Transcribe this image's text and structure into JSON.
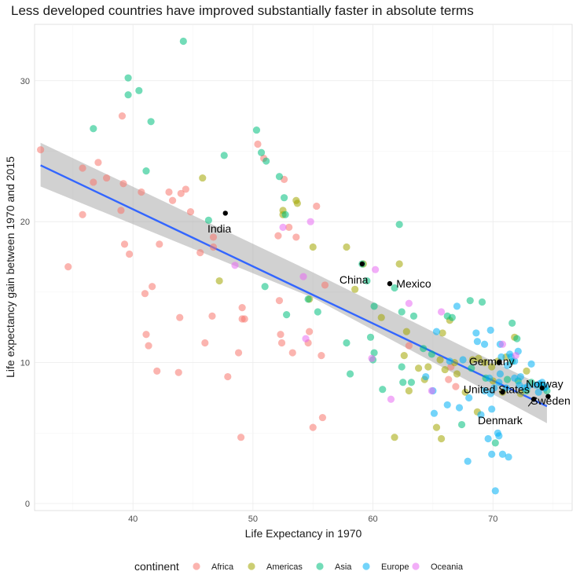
{
  "chart_data": {
    "type": "scatter",
    "title": "Less developed countries have improved substantially faster in absolute terms",
    "xlabel": "Life Expectancy in 1970",
    "ylabel": "Life expectancy gain between 1970 and 2015",
    "xlim": [
      31.8,
      76.6
    ],
    "ylim": [
      -0.5,
      34.0
    ],
    "x_ticks": [
      40,
      50,
      60,
      70
    ],
    "x_tick_labels": [
      "40",
      "50",
      "60",
      "70"
    ],
    "y_ticks": [
      0,
      10,
      20,
      30
    ],
    "y_tick_labels": [
      "0",
      "10",
      "20",
      "30"
    ],
    "grid": true,
    "legend": {
      "title": "continent",
      "placement": "bottom",
      "entries": [
        "Africa",
        "Americas",
        "Asia",
        "Europe",
        "Oceania"
      ]
    },
    "colors": {
      "Africa": "#f8766d",
      "Americas": "#a3a500",
      "Asia": "#00bf7d",
      "Europe": "#00b0f6",
      "Oceania": "#e76bf3",
      "trend": "#3366ff",
      "band": "#999999",
      "highlight": "#000000"
    },
    "trend_line": {
      "x": [
        32.3,
        74.5
      ],
      "y": [
        24.0,
        6.9
      ]
    },
    "confidence_band": {
      "x": [
        32.3,
        55.0,
        74.5
      ],
      "upper": [
        25.6,
        16.4,
        8.2
      ],
      "lower": [
        22.5,
        14.6,
        5.7
      ]
    },
    "series": [
      {
        "name": "Africa",
        "points": [
          [
            32.3,
            25.1
          ],
          [
            34.6,
            16.8
          ],
          [
            35.8,
            23.8
          ],
          [
            35.8,
            20.5
          ],
          [
            36.7,
            22.8
          ],
          [
            37.1,
            24.2
          ],
          [
            37.8,
            23.1
          ],
          [
            39.0,
            20.8
          ],
          [
            39.1,
            27.5
          ],
          [
            39.2,
            22.7
          ],
          [
            39.3,
            18.4
          ],
          [
            39.7,
            17.7
          ],
          [
            40.7,
            22.1
          ],
          [
            41.0,
            14.9
          ],
          [
            41.1,
            12.0
          ],
          [
            41.3,
            11.2
          ],
          [
            41.6,
            15.4
          ],
          [
            42.0,
            9.4
          ],
          [
            42.2,
            18.4
          ],
          [
            43.0,
            22.1
          ],
          [
            43.3,
            21.5
          ],
          [
            43.8,
            9.3
          ],
          [
            43.9,
            13.2
          ],
          [
            44.0,
            22.0
          ],
          [
            44.4,
            22.3
          ],
          [
            44.8,
            20.7
          ],
          [
            45.6,
            17.8
          ],
          [
            46.0,
            11.4
          ],
          [
            46.6,
            13.3
          ],
          [
            46.7,
            18.9
          ],
          [
            46.7,
            18.2
          ],
          [
            47.9,
            9.0
          ],
          [
            48.8,
            10.7
          ],
          [
            49.0,
            4.7
          ],
          [
            49.1,
            13.9
          ],
          [
            49.1,
            13.1
          ],
          [
            49.3,
            13.1
          ],
          [
            50.4,
            25.5
          ],
          [
            50.9,
            24.5
          ],
          [
            52.1,
            19.0
          ],
          [
            52.2,
            14.4
          ],
          [
            52.3,
            12.0
          ],
          [
            52.4,
            11.4
          ],
          [
            52.6,
            23.0
          ],
          [
            53.0,
            19.6
          ],
          [
            53.3,
            10.7
          ],
          [
            53.6,
            18.9
          ],
          [
            54.6,
            11.4
          ],
          [
            54.7,
            12.2
          ],
          [
            55.0,
            5.4
          ],
          [
            55.3,
            21.1
          ],
          [
            55.7,
            10.5
          ],
          [
            55.8,
            6.1
          ],
          [
            56.0,
            15.5
          ],
          [
            63.0,
            11.2
          ],
          [
            66.3,
            8.8
          ],
          [
            66.5,
            9.7
          ],
          [
            66.9,
            8.3
          ]
        ]
      },
      {
        "name": "Americas",
        "points": [
          [
            45.8,
            23.1
          ],
          [
            47.2,
            15.8
          ],
          [
            52.5,
            20.5
          ],
          [
            52.5,
            20.8
          ],
          [
            53.6,
            21.5
          ],
          [
            53.7,
            21.3
          ],
          [
            54.7,
            14.5
          ],
          [
            55.0,
            18.2
          ],
          [
            57.8,
            18.2
          ],
          [
            58.5,
            15.2
          ],
          [
            59.2,
            17.0
          ],
          [
            60.7,
            13.2
          ],
          [
            61.8,
            4.7
          ],
          [
            62.2,
            17.0
          ],
          [
            62.6,
            10.5
          ],
          [
            62.8,
            12.2
          ],
          [
            63.0,
            8.0
          ],
          [
            63.8,
            9.6
          ],
          [
            64.3,
            8.8
          ],
          [
            64.6,
            9.7
          ],
          [
            65.3,
            5.4
          ],
          [
            65.6,
            10.2
          ],
          [
            65.7,
            4.6
          ],
          [
            65.8,
            12.1
          ],
          [
            66.0,
            9.5
          ],
          [
            66.4,
            13.0
          ],
          [
            66.8,
            10.0
          ],
          [
            67.0,
            9.2
          ],
          [
            67.7,
            7.9
          ],
          [
            68.3,
            10.2
          ],
          [
            68.7,
            6.5
          ],
          [
            68.8,
            10.3
          ],
          [
            69.3,
            10.0
          ],
          [
            69.9,
            9.7
          ],
          [
            70.0,
            8.7
          ],
          [
            70.4,
            10.1
          ],
          [
            70.8,
            7.9
          ],
          [
            71.1,
            10.4
          ],
          [
            71.8,
            11.8
          ],
          [
            72.3,
            7.8
          ],
          [
            72.8,
            9.4
          ]
        ]
      },
      {
        "name": "Asia",
        "points": [
          [
            36.7,
            26.6
          ],
          [
            39.6,
            30.2
          ],
          [
            39.6,
            29.0
          ],
          [
            40.5,
            29.3
          ],
          [
            41.1,
            23.6
          ],
          [
            41.5,
            27.1
          ],
          [
            44.2,
            32.8
          ],
          [
            46.3,
            20.1
          ],
          [
            47.6,
            24.7
          ],
          [
            50.3,
            26.5
          ],
          [
            50.7,
            24.9
          ],
          [
            51.0,
            15.4
          ],
          [
            51.1,
            24.3
          ],
          [
            52.2,
            23.2
          ],
          [
            52.6,
            21.7
          ],
          [
            52.7,
            20.5
          ],
          [
            52.8,
            13.4
          ],
          [
            54.6,
            14.5
          ],
          [
            55.4,
            13.6
          ],
          [
            57.8,
            11.4
          ],
          [
            58.1,
            9.2
          ],
          [
            59.1,
            17.0
          ],
          [
            59.5,
            15.8
          ],
          [
            59.8,
            11.8
          ],
          [
            60.0,
            10.2
          ],
          [
            60.1,
            14.0
          ],
          [
            60.1,
            10.7
          ],
          [
            60.8,
            8.1
          ],
          [
            61.8,
            15.3
          ],
          [
            62.2,
            19.8
          ],
          [
            62.4,
            13.6
          ],
          [
            62.4,
            9.7
          ],
          [
            62.5,
            8.6
          ],
          [
            63.2,
            8.6
          ],
          [
            63.4,
            13.3
          ],
          [
            64.2,
            11.0
          ],
          [
            64.9,
            10.6
          ],
          [
            66.2,
            13.3
          ],
          [
            66.6,
            13.2
          ],
          [
            67.4,
            5.6
          ],
          [
            68.1,
            14.4
          ],
          [
            68.2,
            9.6
          ],
          [
            69.1,
            14.3
          ],
          [
            69.4,
            8.9
          ],
          [
            70.2,
            4.3
          ],
          [
            71.2,
            8.8
          ],
          [
            71.6,
            12.8
          ],
          [
            71.6,
            10.1
          ],
          [
            72.0,
            11.7
          ],
          [
            72.1,
            8.7
          ],
          [
            72.8,
            8.0
          ],
          [
            73.2,
            8.6
          ],
          [
            74.0,
            8.4
          ],
          [
            74.5,
            8.0
          ]
        ]
      },
      {
        "name": "Europe",
        "points": [
          [
            64.4,
            9.0
          ],
          [
            65.0,
            8.0
          ],
          [
            65.1,
            6.4
          ],
          [
            66.2,
            7.0
          ],
          [
            66.4,
            10.1
          ],
          [
            67.0,
            14.0
          ],
          [
            67.5,
            10.2
          ],
          [
            67.9,
            3.0
          ],
          [
            68.0,
            7.5
          ],
          [
            68.6,
            12.1
          ],
          [
            69.0,
            6.3
          ],
          [
            69.3,
            8.0
          ],
          [
            69.6,
            4.6
          ],
          [
            69.7,
            8.9
          ],
          [
            69.8,
            7.8
          ],
          [
            69.9,
            3.5
          ],
          [
            69.9,
            6.7
          ],
          [
            70.1,
            8.2
          ],
          [
            70.4,
            5.0
          ],
          [
            70.5,
            4.8
          ],
          [
            70.5,
            8.6
          ],
          [
            70.6,
            11.3
          ],
          [
            70.6,
            9.2
          ],
          [
            70.7,
            10.4
          ],
          [
            70.8,
            3.5
          ],
          [
            71.1,
            8.2
          ],
          [
            71.2,
            9.8
          ],
          [
            71.3,
            3.3
          ],
          [
            71.4,
            10.6
          ],
          [
            71.5,
            10.4
          ],
          [
            71.8,
            10.1
          ],
          [
            71.8,
            8.9
          ],
          [
            72.1,
            10.8
          ],
          [
            72.2,
            8.4
          ],
          [
            72.3,
            9.0
          ],
          [
            72.6,
            8.2
          ],
          [
            72.9,
            8.3
          ],
          [
            73.2,
            9.9
          ],
          [
            73.6,
            8.4
          ],
          [
            73.8,
            7.9
          ],
          [
            73.9,
            8.5
          ],
          [
            74.1,
            8.6
          ],
          [
            74.3,
            8.2
          ],
          [
            74.4,
            8.3
          ],
          [
            70.2,
            0.9
          ],
          [
            69.3,
            11.3
          ],
          [
            69.8,
            12.3
          ],
          [
            68.7,
            11.5
          ],
          [
            67.2,
            6.8
          ],
          [
            65.3,
            12.2
          ]
        ]
      },
      {
        "name": "Oceania",
        "points": [
          [
            48.5,
            16.9
          ],
          [
            52.5,
            19.6
          ],
          [
            54.2,
            16.1
          ],
          [
            54.4,
            11.7
          ],
          [
            54.8,
            20.0
          ],
          [
            59.9,
            10.3
          ],
          [
            60.2,
            16.6
          ],
          [
            61.5,
            7.4
          ],
          [
            63.0,
            14.2
          ],
          [
            64.9,
            8.0
          ],
          [
            65.7,
            13.6
          ],
          [
            70.8,
            11.3
          ],
          [
            71.9,
            10.5
          ]
        ]
      }
    ],
    "highlighted": [
      {
        "name": "India",
        "x": 47.7,
        "y": 20.6
      },
      {
        "name": "China",
        "x": 59.1,
        "y": 17.0
      },
      {
        "name": "Mexico",
        "x": 61.4,
        "y": 15.6
      },
      {
        "name": "Germany",
        "x": 70.5,
        "y": 10.0
      },
      {
        "name": "United States",
        "x": 70.8,
        "y": 7.9
      },
      {
        "name": "Denmark",
        "x": 73.4,
        "y": 7.4
      },
      {
        "name": "Norway",
        "x": 74.1,
        "y": 8.2
      },
      {
        "name": "Sweden",
        "x": 74.6,
        "y": 7.6
      }
    ],
    "annotations": [
      {
        "text": "India",
        "x": 47.2,
        "y": 19.5
      },
      {
        "text": "China",
        "x": 58.4,
        "y": 15.9
      },
      {
        "text": "Mexico",
        "x": 63.4,
        "y": 15.6
      },
      {
        "text": "Germany",
        "x": 69.9,
        "y": 10.1
      },
      {
        "text": "United States",
        "x": 70.3,
        "y": 8.1
      },
      {
        "text": "Denmark",
        "x": 70.6,
        "y": 5.9
      },
      {
        "text": "Norway",
        "x": 74.3,
        "y": 8.5
      },
      {
        "text": "Sweden",
        "x": 74.8,
        "y": 7.3
      }
    ]
  }
}
